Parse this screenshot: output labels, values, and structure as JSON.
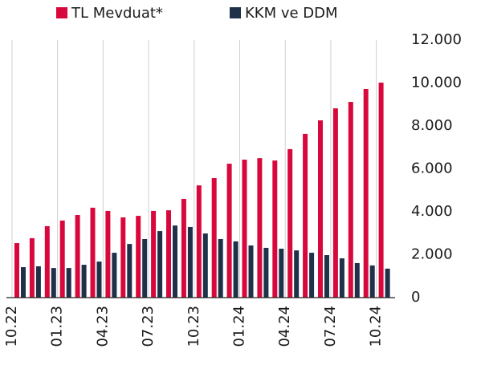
{
  "chart_data": {
    "type": "bar",
    "categories": [
      "10.22",
      null,
      null,
      "01.23",
      null,
      null,
      "04.23",
      null,
      null,
      "07.23",
      null,
      null,
      "10.23",
      null,
      null,
      "01.24",
      null,
      null,
      "04.24",
      null,
      null,
      "07.24",
      null,
      null,
      "10.24"
    ],
    "series": [
      {
        "name": "TL Mevduat*",
        "color": "#d9083c",
        "values": [
          2540,
          2770,
          3330,
          3590,
          3850,
          4190,
          4040,
          3740,
          3810,
          4040,
          4070,
          4600,
          5230,
          5570,
          6240,
          6430,
          6500,
          6390,
          6920,
          7630,
          8260,
          8820,
          9120,
          9720,
          10020
        ]
      },
      {
        "name": "KKM ve DDM",
        "color": "#1f3049",
        "values": [
          1420,
          1460,
          1380,
          1380,
          1530,
          1680,
          2090,
          2500,
          2730,
          3100,
          3360,
          3290,
          2990,
          2730,
          2620,
          2430,
          2320,
          2280,
          2200,
          2090,
          1980,
          1830,
          1610,
          1500,
          1350
        ]
      }
    ],
    "ylim": [
      0,
      12000
    ],
    "yticks": [
      0,
      {
        "value": 2000,
        "label": "2.000"
      },
      {
        "value": 4000,
        "label": "4.000"
      },
      {
        "value": 6000,
        "label": "6.000"
      },
      {
        "value": 8000,
        "label": "8.000"
      },
      {
        "value": 10000,
        "label": "10.000"
      },
      {
        "value": 12000,
        "label": "12.000"
      }
    ],
    "grid": true,
    "legend": "top"
  }
}
